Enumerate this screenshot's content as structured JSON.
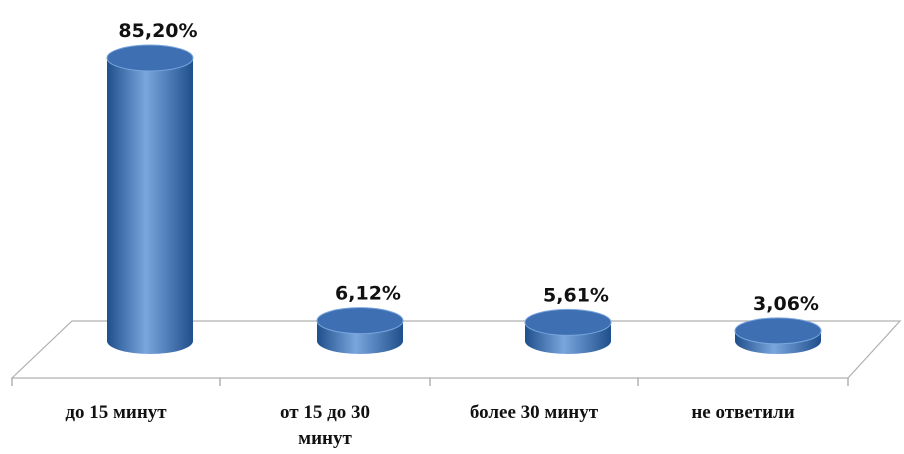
{
  "chart_data": {
    "type": "bar",
    "categories": [
      "до 15 минут",
      "от 15 до 30 минут",
      "более 30 минут",
      "не ответили"
    ],
    "category_lines": [
      [
        "до 15 минут"
      ],
      [
        "от 15 до 30",
        "минут"
      ],
      [
        "более 30 минут"
      ],
      [
        "не ответили"
      ]
    ],
    "values": [
      85.2,
      6.12,
      5.61,
      3.06
    ],
    "value_labels": [
      "85,20%",
      "6,12%",
      "5,61%",
      "3,06%"
    ],
    "unit": "%",
    "ylim": [
      0,
      85.2
    ],
    "grid": false,
    "legend": "none",
    "bar_shape": "cylinder",
    "colors": {
      "bar_side_dark": "#1f4f8c",
      "bar_side_mid": "#4a7fc4",
      "bar_side_light": "#7aa6dd",
      "bar_top": "#3e6fb3",
      "floor_line": "#b0b0b0",
      "axis_line": "#a0a0a0"
    }
  }
}
